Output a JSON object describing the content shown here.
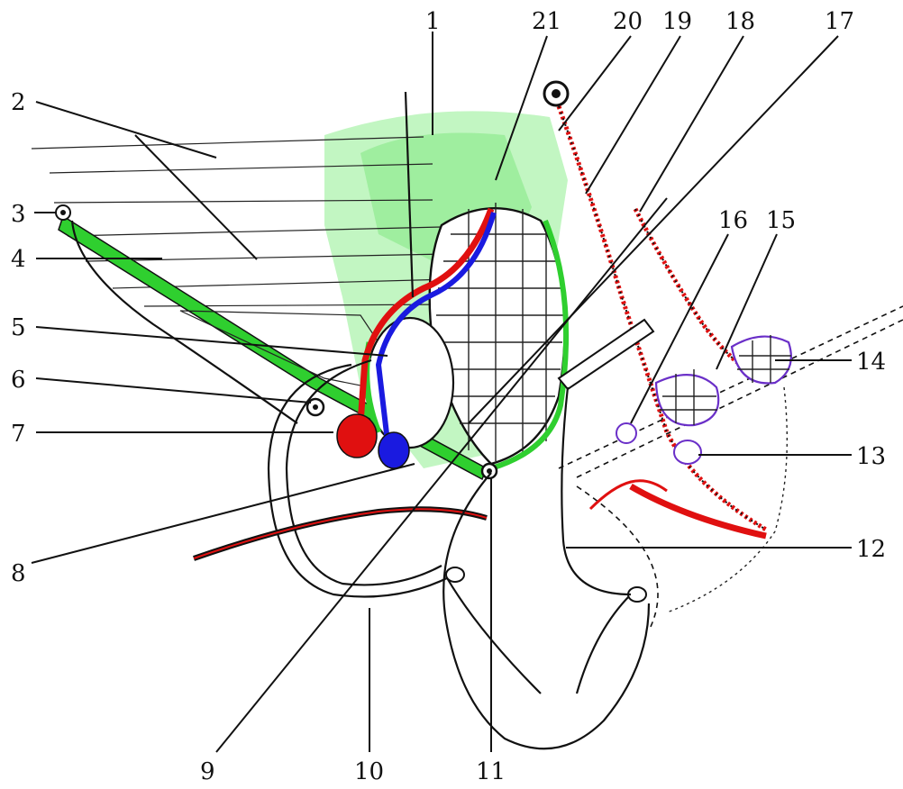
{
  "labels": {
    "l1": "1",
    "l2": "2",
    "l3": "3",
    "l4": "4",
    "l5": "5",
    "l6": "6",
    "l7": "7",
    "l8": "8",
    "l9": "9",
    "l10": "10",
    "l11": "11",
    "l12": "12",
    "l13": "13",
    "l14": "14",
    "l15": "15",
    "l16": "16",
    "l17": "17",
    "l18": "18",
    "l19": "19",
    "l20": "20",
    "l21": "21"
  },
  "colors": {
    "green": "#2fcf2f",
    "green_light": "#7fe87f",
    "red": "#e01010",
    "blue": "#1a1ae0",
    "purple": "#6a2fc8",
    "ink": "#111111"
  }
}
